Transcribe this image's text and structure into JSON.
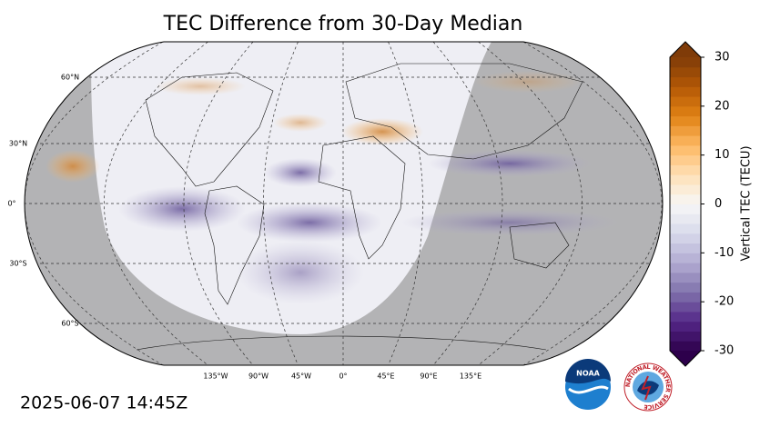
{
  "title": "TEC Difference from 30-Day Median",
  "map": {
    "lat_labels": [
      "60°N",
      "30°N",
      "0°",
      "30°S",
      "60°S"
    ],
    "lon_labels": [
      "135°W",
      "90°W",
      "45°W",
      "0°",
      "45°E",
      "90°E",
      "135°E"
    ]
  },
  "colorbar": {
    "label": "Vertical TEC (TECU)",
    "range": [
      -30,
      30
    ],
    "ticks": [
      30,
      20,
      10,
      0,
      -10,
      -20,
      -30
    ],
    "colormap": [
      "#2d004b",
      "#542788",
      "#8073ac",
      "#b2abd2",
      "#d8daeb",
      "#f7f7f7",
      "#fee0b6",
      "#fdb863",
      "#e08214",
      "#b35806",
      "#7f3b08"
    ]
  },
  "timestamp": "2025-06-07 14:45Z",
  "logos": {
    "noaa": "NOAA",
    "nws": "NATIONAL WEATHER SERVICE"
  }
}
